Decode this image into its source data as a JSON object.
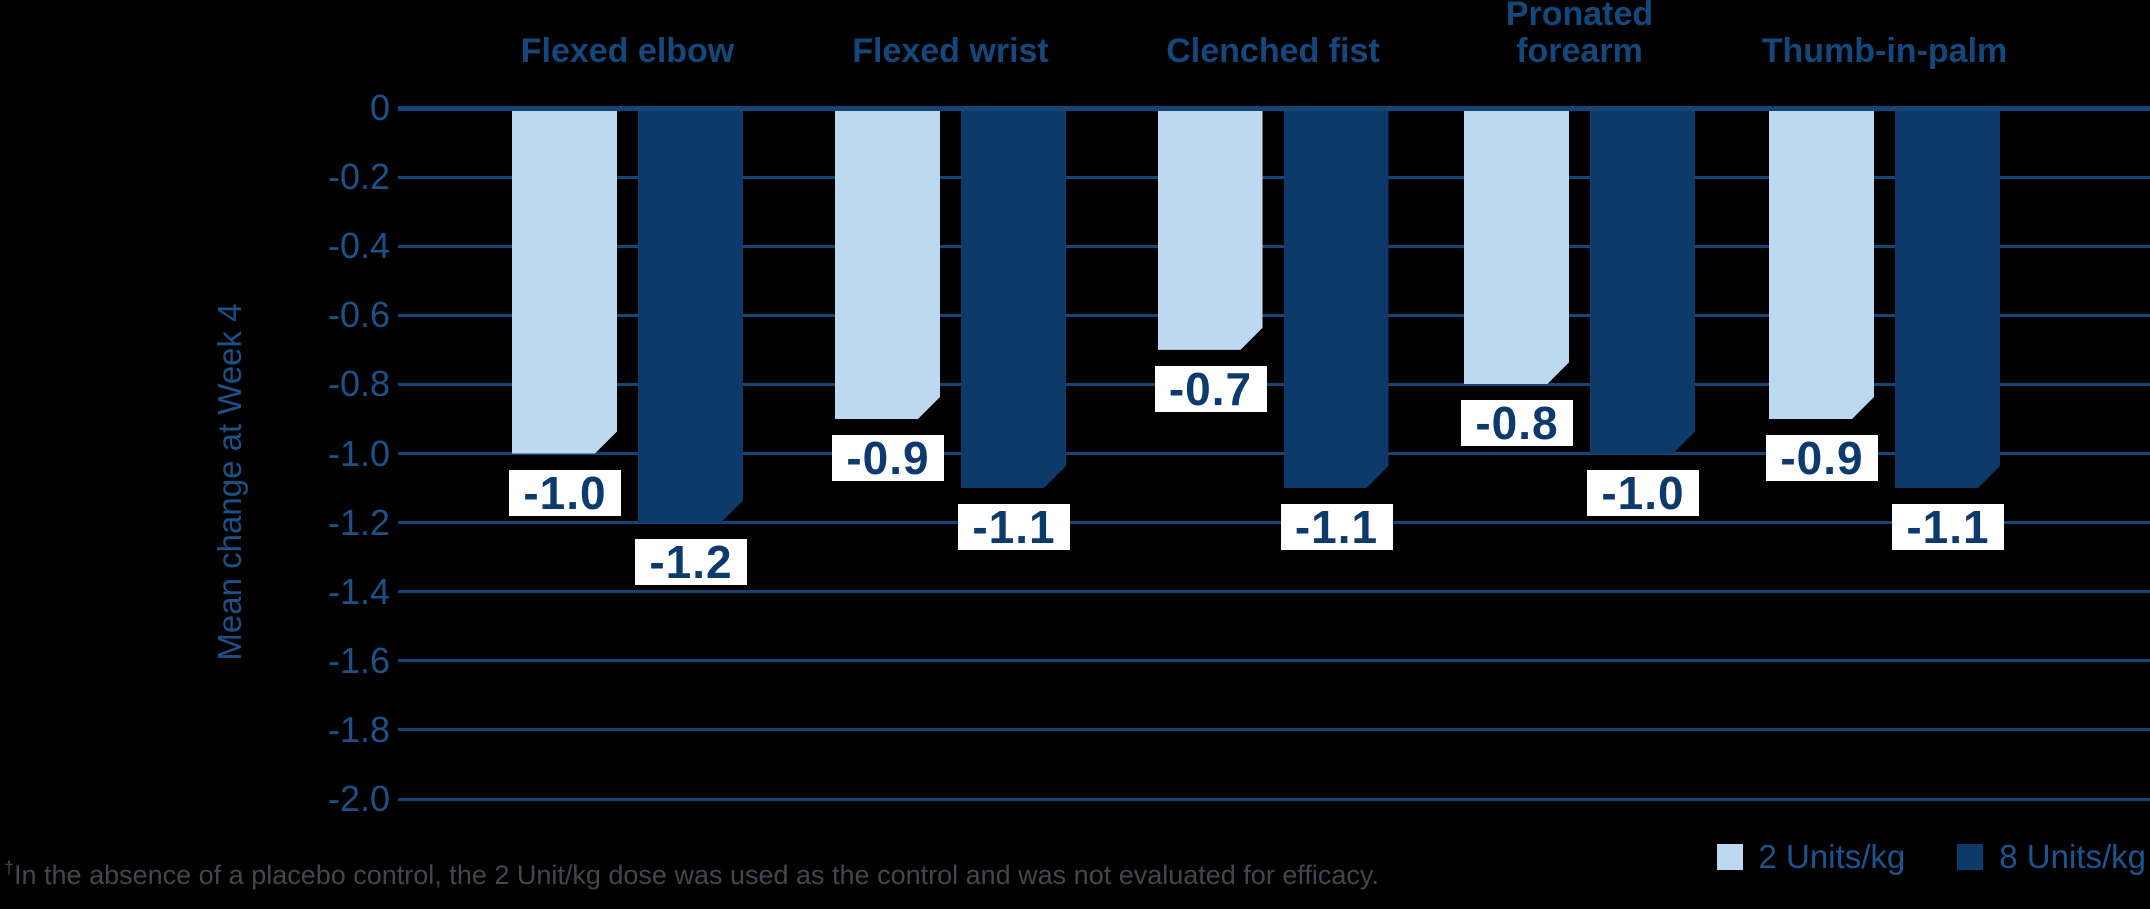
{
  "chart_data": {
    "type": "bar",
    "categories": [
      "Flexed elbow",
      "Flexed wrist",
      "Clenched fist",
      "Pronated\nforearm",
      "Thumb-in-palm"
    ],
    "series": [
      {
        "name": "2 Units/kg",
        "color": "#bdd9f1",
        "values": [
          -1.0,
          -0.9,
          -0.7,
          -0.8,
          -0.9
        ]
      },
      {
        "name": "8 Units/kg",
        "color": "#0d3a69",
        "values": [
          -1.2,
          -1.1,
          -1.1,
          -1.0,
          -1.1
        ]
      }
    ],
    "ylabel": "Mean change at Week 4",
    "ylim": [
      -2.0,
      0
    ],
    "ytick_step": 0.2,
    "ytick_labels": [
      "0",
      "-0.2",
      "-0.4",
      "-0.6",
      "-0.8",
      "-1.0",
      "-1.2",
      "-1.4",
      "-1.6",
      "-1.8",
      "-2.0"
    ],
    "grid": true,
    "data_labels_shown": true,
    "legend_position": "bottom-right"
  },
  "footnote": {
    "dagger": "†",
    "text": "In the absence of a placebo control, the 2 Unit/kg dose was used as the control and was not evaluated for efficacy."
  },
  "colors": {
    "background": "#000000",
    "gridline": "#134576",
    "axis_text": "#1d5186",
    "header_text": "#14477c",
    "data_label_text": "#0c3a6c",
    "data_label_bg": "#ffffff",
    "legend_text": "#1e538e",
    "footnote_text": "#43464d"
  }
}
